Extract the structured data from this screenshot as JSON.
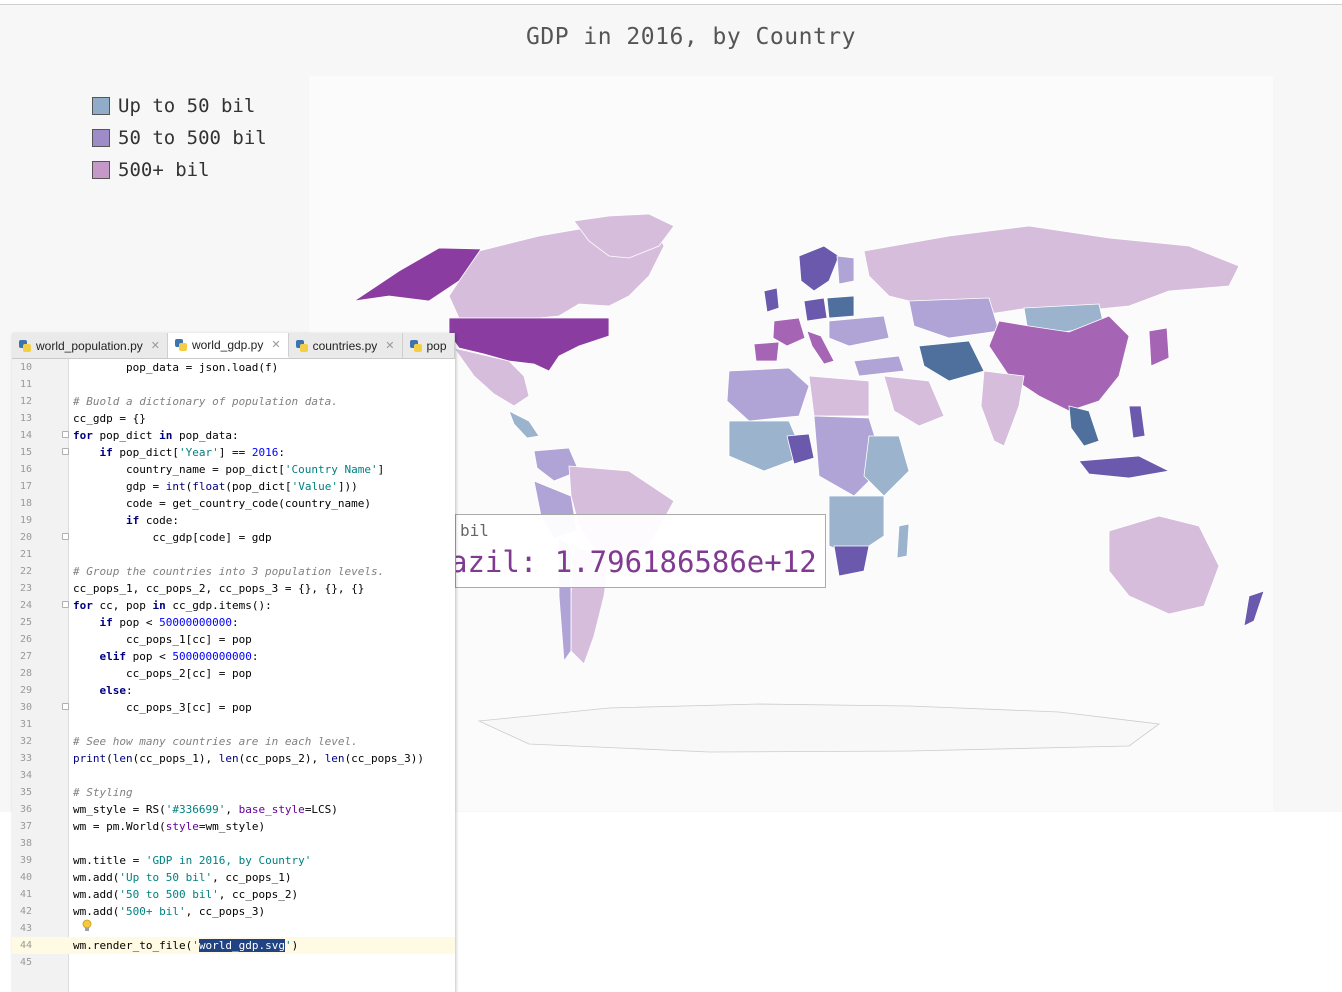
{
  "map": {
    "title": "GDP in 2016, by Country",
    "legend": [
      {
        "label": "Up to 50 bil",
        "color": "#8fadc9"
      },
      {
        "label": "50 to 500 bil",
        "color": "#9e8cc9"
      },
      {
        "label": "500+ bil",
        "color": "#c498c8"
      }
    ],
    "tooltip": {
      "series_label": "bil",
      "value_text": "azil: 1.796186586e+12"
    },
    "colors": {
      "usa": "#8a3ca0",
      "china": "#a664b5",
      "canada": "#d6bddc",
      "brazil": "#d6bddc",
      "russia": "#d6bddc",
      "australia": "#d6bddc",
      "mid_blue": "#9bb3cd",
      "mid_purple": "#b0a3d6",
      "dark_blue": "#4f6f9c",
      "dark_purple": "#6a59ad"
    }
  },
  "ide": {
    "tabs": [
      {
        "label": "world_population.py",
        "active": false
      },
      {
        "label": "world_gdp.py",
        "active": true
      },
      {
        "label": "countries.py",
        "active": false
      },
      {
        "label": "pop",
        "active": false
      }
    ],
    "lines": [
      {
        "n": "10",
        "html": "        pop_data = json.load(f)"
      },
      {
        "n": "11",
        "html": ""
      },
      {
        "n": "12",
        "html": "<span class=\"c\"># Buold a dictionary of population data.</span>"
      },
      {
        "n": "13",
        "html": "cc_gdp = {}"
      },
      {
        "n": "14",
        "html": "<span class=\"k\">for</span> pop_dict <span class=\"k\">in</span> pop_data:",
        "fold": true
      },
      {
        "n": "15",
        "html": "    <span class=\"k\">if</span> pop_dict[<span class=\"s\">'Year'</span>] == <span class=\"n\">2016</span>:",
        "fold": true
      },
      {
        "n": "16",
        "html": "        country_name = pop_dict[<span class=\"s\">'Country Name'</span>]"
      },
      {
        "n": "17",
        "html": "        gdp = <span class=\"bi\">int</span>(<span class=\"bi\">float</span>(pop_dict[<span class=\"s\">'Value'</span>]))"
      },
      {
        "n": "18",
        "html": "        code = get_country_code(country_name)"
      },
      {
        "n": "19",
        "html": "        <span class=\"k\">if</span> code:"
      },
      {
        "n": "20",
        "html": "            cc_gdp[code] = gdp",
        "fold": true
      },
      {
        "n": "21",
        "html": ""
      },
      {
        "n": "22",
        "html": "<span class=\"c\"># Group the countries into 3 population levels.</span>"
      },
      {
        "n": "23",
        "html": "cc_pops_1, cc_pops_2, cc_pops_3 = {}, {}, {}"
      },
      {
        "n": "24",
        "html": "<span class=\"k\">for</span> cc, pop <span class=\"k\">in</span> cc_gdp.items():",
        "fold": true
      },
      {
        "n": "25",
        "html": "    <span class=\"k\">if</span> pop &lt; <span class=\"n\">50000000000</span>:"
      },
      {
        "n": "26",
        "html": "        cc_pops_1[cc] = pop"
      },
      {
        "n": "27",
        "html": "    <span class=\"k\">elif</span> pop &lt; <span class=\"n\">500000000000</span>:"
      },
      {
        "n": "28",
        "html": "        cc_pops_2[cc] = pop"
      },
      {
        "n": "29",
        "html": "    <span class=\"k\">else</span>:"
      },
      {
        "n": "30",
        "html": "        cc_pops_3[cc] = pop",
        "fold": true
      },
      {
        "n": "31",
        "html": ""
      },
      {
        "n": "32",
        "html": "<span class=\"c\"># See how many countries are in each level.</span>"
      },
      {
        "n": "33",
        "html": "<span class=\"bi\">print</span>(<span class=\"bi\">len</span>(cc_pops_1), <span class=\"bi\">len</span>(cc_pops_2), <span class=\"bi\">len</span>(cc_pops_3))"
      },
      {
        "n": "34",
        "html": ""
      },
      {
        "n": "35",
        "html": "<span class=\"c\"># Styling</span>"
      },
      {
        "n": "36",
        "html": "wm_style = RS(<span class=\"s\">'#336699'</span>, <span class=\"p\">base_style</span>=LCS)"
      },
      {
        "n": "37",
        "html": "wm = pm.World(<span class=\"p\">style</span>=wm_style)"
      },
      {
        "n": "38",
        "html": ""
      },
      {
        "n": "39",
        "html": "wm.title = <span class=\"s\">'GDP in 2016, by Country'</span>"
      },
      {
        "n": "40",
        "html": "wm.add(<span class=\"s\">'Up to 50 bil'</span>, cc_pops_1)"
      },
      {
        "n": "41",
        "html": "wm.add(<span class=\"s\">'50 to 500 bil'</span>, cc_pops_2)"
      },
      {
        "n": "42",
        "html": "wm.add(<span class=\"s\">'500+ bil'</span>, cc_pops_3)"
      },
      {
        "n": "43",
        "html": ""
      },
      {
        "n": "44",
        "html": "wm.render_to_file(<span class=\"s\">'<span class=\"sel\">world_gdp.svg</span>'</span>)",
        "current": true
      },
      {
        "n": "45",
        "html": ""
      }
    ]
  }
}
